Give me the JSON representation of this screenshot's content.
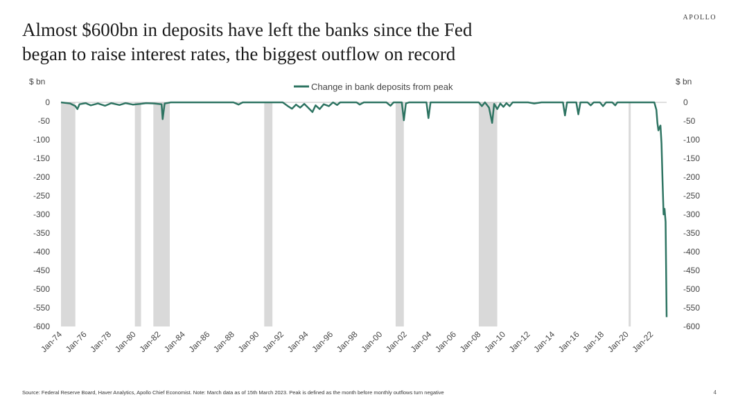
{
  "brand": "APOLLO",
  "title_line1": "Almost $600bn in deposits have left the banks since the Fed",
  "title_line2": "began to raise interest rates, the biggest outflow on record",
  "footer": "Source: Federal Reserve Board, Haver Analytics, Apollo Chief Economist. Note: March data as of 15th March 2023. Peak is defined as the month before monthly outflows turn negative",
  "page_number": "4",
  "colors": {
    "series": "#2e7462",
    "recession": "#d9d9d9"
  },
  "chart_data": {
    "type": "line",
    "ylabel_left": "$ bn",
    "ylabel_right": "$ bn",
    "legend": "Change in bank deposits from peak",
    "legend_position": "top-center",
    "grid": false,
    "ylim": [
      -600,
      0
    ],
    "yticks": [
      0,
      -50,
      -100,
      -150,
      -200,
      -250,
      -300,
      -350,
      -400,
      -450,
      -500,
      -550,
      -600
    ],
    "xlim": [
      "1974-01",
      "2023-03"
    ],
    "xticks": [
      "Jan-74",
      "Jan-76",
      "Jan-78",
      "Jan-80",
      "Jan-82",
      "Jan-84",
      "Jan-86",
      "Jan-88",
      "Jan-90",
      "Jan-92",
      "Jan-94",
      "Jan-96",
      "Jan-98",
      "Jan-00",
      "Jan-02",
      "Jan-04",
      "Jan-06",
      "Jan-08",
      "Jan-10",
      "Jan-12",
      "Jan-14",
      "Jan-16",
      "Jan-18",
      "Jan-20",
      "Jan-22"
    ],
    "recessions": [
      [
        "1974-01",
        "1975-03"
      ],
      [
        "1980-01",
        "1980-07"
      ],
      [
        "1981-07",
        "1982-11"
      ],
      [
        "1990-07",
        "1991-03"
      ],
      [
        "2001-03",
        "2001-11"
      ],
      [
        "2007-12",
        "2009-06"
      ],
      [
        "2020-02",
        "2020-04"
      ]
    ],
    "series": [
      {
        "points": [
          [
            "1974-01",
            0
          ],
          [
            "1974-10",
            -3
          ],
          [
            "1975-03",
            -10
          ],
          [
            "1975-05",
            -18
          ],
          [
            "1975-07",
            -5
          ],
          [
            "1976-01",
            -2
          ],
          [
            "1976-06",
            -8
          ],
          [
            "1977-01",
            -3
          ],
          [
            "1977-08",
            -9
          ],
          [
            "1978-02",
            -2
          ],
          [
            "1978-10",
            -7
          ],
          [
            "1979-04",
            -2
          ],
          [
            "1979-11",
            -6
          ],
          [
            "1980-06",
            -4
          ],
          [
            "1980-12",
            -2
          ],
          [
            "1981-08",
            -3
          ],
          [
            "1982-03",
            -5
          ],
          [
            "1982-04",
            -45
          ],
          [
            "1982-06",
            -3
          ],
          [
            "1982-12",
            0
          ],
          [
            "1988-01",
            0
          ],
          [
            "1988-06",
            -6
          ],
          [
            "1988-10",
            0
          ],
          [
            "1992-01",
            0
          ],
          [
            "1992-06",
            -10
          ],
          [
            "1992-10",
            -17
          ],
          [
            "1993-02",
            -6
          ],
          [
            "1993-06",
            -14
          ],
          [
            "1993-10",
            -4
          ],
          [
            "1994-01",
            -12
          ],
          [
            "1994-06",
            -26
          ],
          [
            "1994-09",
            -8
          ],
          [
            "1995-01",
            -18
          ],
          [
            "1995-05",
            -5
          ],
          [
            "1995-10",
            -10
          ],
          [
            "1996-02",
            0
          ],
          [
            "1996-06",
            -7
          ],
          [
            "1996-09",
            0
          ],
          [
            "1998-01",
            0
          ],
          [
            "1998-04",
            -6
          ],
          [
            "1998-08",
            0
          ],
          [
            "2000-06",
            0
          ],
          [
            "2000-10",
            -9
          ],
          [
            "2001-01",
            0
          ],
          [
            "2001-09",
            0
          ],
          [
            "2001-11",
            -48
          ],
          [
            "2002-01",
            -3
          ],
          [
            "2002-04",
            0
          ],
          [
            "2003-09",
            0
          ],
          [
            "2003-11",
            -42
          ],
          [
            "2004-01",
            0
          ],
          [
            "2007-12",
            0
          ],
          [
            "2008-03",
            -10
          ],
          [
            "2008-06",
            0
          ],
          [
            "2008-10",
            -14
          ],
          [
            "2009-01",
            -55
          ],
          [
            "2009-03",
            -4
          ],
          [
            "2009-06",
            -18
          ],
          [
            "2009-09",
            -3
          ],
          [
            "2009-12",
            -12
          ],
          [
            "2010-03",
            -2
          ],
          [
            "2010-06",
            -10
          ],
          [
            "2010-09",
            0
          ],
          [
            "2011-12",
            0
          ],
          [
            "2012-06",
            -3
          ],
          [
            "2013-01",
            0
          ],
          [
            "2014-10",
            0
          ],
          [
            "2014-12",
            -35
          ],
          [
            "2015-02",
            0
          ],
          [
            "2015-11",
            0
          ],
          [
            "2016-01",
            -32
          ],
          [
            "2016-03",
            0
          ],
          [
            "2016-10",
            0
          ],
          [
            "2017-01",
            -8
          ],
          [
            "2017-04",
            0
          ],
          [
            "2017-10",
            0
          ],
          [
            "2018-01",
            -10
          ],
          [
            "2018-04",
            0
          ],
          [
            "2018-10",
            0
          ],
          [
            "2019-01",
            -8
          ],
          [
            "2019-03",
            0
          ],
          [
            "2022-03",
            0
          ],
          [
            "2022-05",
            -20
          ],
          [
            "2022-06",
            -55
          ],
          [
            "2022-07",
            -75
          ],
          [
            "2022-08",
            -68
          ],
          [
            "2022-09",
            -62
          ],
          [
            "2022-10",
            -110
          ],
          [
            "2022-11",
            -210
          ],
          [
            "2022-12",
            -300
          ],
          [
            "2023-01",
            -285
          ],
          [
            "2023-02",
            -320
          ],
          [
            "2023-03",
            -575
          ]
        ]
      }
    ]
  }
}
